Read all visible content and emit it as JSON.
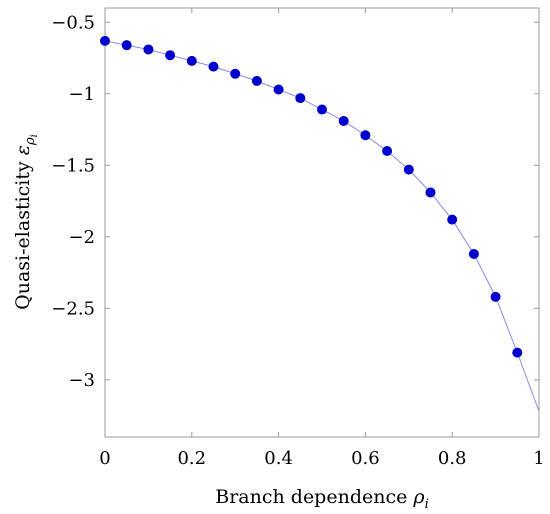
{
  "chart_data": {
    "type": "scatter",
    "xlabel": "Branch dependence ρ",
    "xlabel_parts": {
      "main": "Branch dependence ",
      "symbol": "ρ",
      "subscript": "i"
    },
    "ylabel": "Quasi-elasticity ε",
    "ylabel_parts": {
      "main": "Quasi-elasticity ",
      "symbol": "ε",
      "subscript": "ρ",
      "subsub": "i"
    },
    "xlim": [
      0,
      1
    ],
    "ylim": [
      -3.4,
      -0.4
    ],
    "xticks": [
      0,
      0.2,
      0.4,
      0.6,
      0.8,
      1
    ],
    "xtick_labels": [
      "0",
      "0.2",
      "0.4",
      "0.6",
      "0.8",
      "1"
    ],
    "yticks": [
      -0.5,
      -1,
      -1.5,
      -2,
      -2.5,
      -3
    ],
    "ytick_labels": [
      "−0.5",
      "−1",
      "−1.5",
      "−2",
      "−2.5",
      "−3"
    ],
    "grid": false,
    "colors": {
      "points": "#0000cc",
      "curve": "#8a8ae6"
    },
    "series": [
      {
        "kind": "markers",
        "x": [
          0,
          0.05,
          0.1,
          0.15,
          0.2,
          0.25,
          0.3,
          0.35,
          0.4,
          0.45,
          0.5,
          0.55,
          0.6,
          0.65,
          0.7,
          0.75,
          0.8,
          0.85,
          0.9,
          0.95
        ],
        "y": [
          -0.63,
          -0.66,
          -0.69,
          -0.73,
          -0.77,
          -0.81,
          -0.86,
          -0.91,
          -0.97,
          -1.03,
          -1.11,
          -1.19,
          -1.29,
          -1.4,
          -1.53,
          -1.69,
          -1.88,
          -2.12,
          -2.42,
          -2.81
        ]
      },
      {
        "kind": "line",
        "x": [
          0,
          0.05,
          0.1,
          0.15,
          0.2,
          0.25,
          0.3,
          0.35,
          0.4,
          0.45,
          0.5,
          0.55,
          0.6,
          0.65,
          0.7,
          0.75,
          0.8,
          0.85,
          0.9,
          0.95,
          1.0
        ],
        "y": [
          -0.63,
          -0.66,
          -0.69,
          -0.73,
          -0.77,
          -0.81,
          -0.86,
          -0.91,
          -0.97,
          -1.03,
          -1.11,
          -1.19,
          -1.29,
          -1.4,
          -1.53,
          -1.69,
          -1.88,
          -2.12,
          -2.42,
          -2.81,
          -3.22
        ]
      }
    ]
  }
}
